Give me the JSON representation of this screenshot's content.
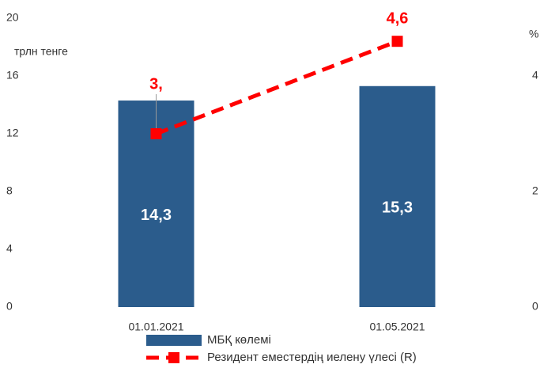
{
  "chart_data": {
    "type": "bar_line",
    "y_label": "трлн тенге",
    "y2_label": "%",
    "categories": [
      "01.01.2021",
      "01.05.2021"
    ],
    "ylim": [
      0,
      20
    ],
    "yticks": [
      0,
      4,
      8,
      12,
      16,
      20
    ],
    "y2lim": [
      0,
      5
    ],
    "y2ticks": [
      0,
      2,
      4
    ],
    "series": [
      {
        "name": "МБҚ көлемі",
        "type": "bar",
        "color": "#2b5c8c",
        "values": [
          14.3,
          15.3
        ],
        "value_labels": [
          "14,3",
          "15,3"
        ]
      },
      {
        "name": "Резидент еместердің иелену үлесі (R)",
        "type": "line",
        "axis": "y2",
        "color": "#ff0000",
        "values": [
          3,
          4.6
        ],
        "value_labels": [
          "3,",
          "4,6"
        ]
      }
    ]
  }
}
